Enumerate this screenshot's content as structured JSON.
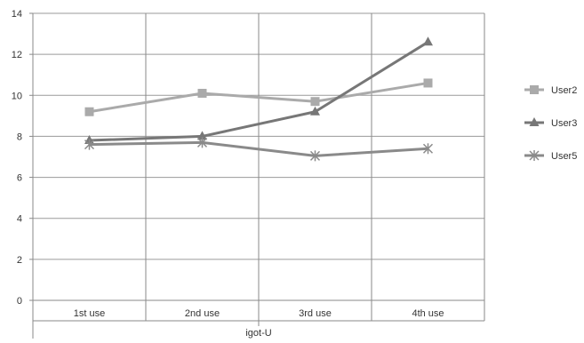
{
  "chart_data": {
    "type": "line",
    "categories": [
      "1st use",
      "2nd use",
      "3rd use",
      "4th use"
    ],
    "category_group_label": "igot-U",
    "series": [
      {
        "name": "User2",
        "values": [
          9.2,
          10.1,
          9.7,
          10.6
        ],
        "color": "#aaaaaa",
        "marker": "square"
      },
      {
        "name": "User3",
        "values": [
          7.8,
          8.0,
          9.2,
          12.6
        ],
        "color": "#777777",
        "marker": "triangle"
      },
      {
        "name": "User5",
        "values": [
          7.6,
          7.7,
          7.05,
          7.4
        ],
        "color": "#8a8a8a",
        "marker": "asterisk"
      }
    ],
    "ylim": [
      0,
      14
    ],
    "yticks": [
      "0",
      "2",
      "4",
      "6",
      "8",
      "10",
      "12",
      "14"
    ],
    "grid": true,
    "legend_position": "right"
  }
}
